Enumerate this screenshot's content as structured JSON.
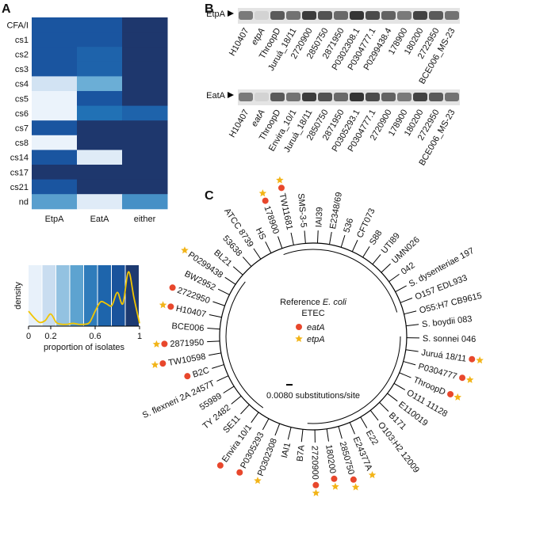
{
  "panels": {
    "a": "A",
    "b": "B",
    "c": "C"
  },
  "heatmap": {
    "rows": [
      "CFA/I",
      "cs1",
      "cs2",
      "cs3",
      "cs4",
      "cs5",
      "cs6",
      "cs7",
      "cs8",
      "cs14",
      "cs17",
      "cs21",
      "nd"
    ],
    "columns": [
      "EtpA",
      "EatA",
      "either"
    ],
    "values": [
      [
        0.8,
        0.8,
        0.95
      ],
      [
        0.8,
        0.8,
        0.95
      ],
      [
        0.8,
        0.7,
        0.95
      ],
      [
        0.8,
        0.7,
        0.95
      ],
      [
        0.15,
        0.4,
        0.95
      ],
      [
        0.05,
        0.8,
        0.95
      ],
      [
        0.05,
        0.6,
        0.7
      ],
      [
        0.8,
        0.95,
        0.95
      ],
      [
        0.05,
        0.95,
        0.95
      ],
      [
        0.8,
        0.1,
        0.95
      ],
      [
        0.95,
        0.95,
        0.95
      ],
      [
        0.8,
        0.95,
        0.95
      ],
      [
        0.45,
        0.1,
        0.5
      ]
    ],
    "colors": [
      "#f7fbff",
      "#c6dbef",
      "#6baed6",
      "#2171b5",
      "#1a55a0",
      "#1f2d5c"
    ]
  },
  "density_chart": {
    "type": "line",
    "y_label": "density",
    "x_label": "proportion of isolates",
    "x": [
      0,
      0.05,
      0.1,
      0.15,
      0.2,
      0.25,
      0.3,
      0.35,
      0.4,
      0.45,
      0.5,
      0.55,
      0.6,
      0.65,
      0.7,
      0.75,
      0.8,
      0.85,
      0.9,
      0.95,
      1
    ],
    "values": [
      1.6,
      0.9,
      0.4,
      0.6,
      1.3,
      0.4,
      0.2,
      0.2,
      0.3,
      0.2,
      0.2,
      0.4,
      1.6,
      2.6,
      2.4,
      2.2,
      3.6,
      2.4,
      5.8,
      3.0,
      0.3
    ],
    "color": "#f2c500",
    "xlim": [
      0,
      1
    ],
    "ylim": [
      0,
      6.5
    ],
    "xticks": [
      0,
      0.2,
      0.6,
      1
    ],
    "bands": 8
  },
  "blots": [
    {
      "protein": "EtpA",
      "lanes": [
        "H10407",
        "etpA",
        "ThroopD",
        "Juruá_18/11",
        "2720900",
        "2850750",
        "2871950",
        "P0302308.1",
        "P0304777.1",
        "P0299438.4",
        "178900",
        "180200",
        "2722950",
        "BCE006_MS-23"
      ],
      "italic_lane": 1
    },
    {
      "protein": "EatA",
      "lanes": [
        "H10407",
        "eatA",
        "ThroopD",
        "Envira_10/1",
        "Juruá_18/11",
        "2850750",
        "2871950",
        "P0305293.1",
        "P0304777.1",
        "2720900",
        "178900",
        "180200",
        "2722950",
        "BCE006_MS-23"
      ],
      "italic_lane": 1
    }
  ],
  "tree": {
    "legend": {
      "reference": "Reference ",
      "species": "E. coli",
      "etec": "ETEC",
      "eatA": "eatA",
      "etpA": "etpA"
    },
    "scale": "0.0080 substitutions/site",
    "etec_color": "#3a8fc8",
    "eatA_color": "#e8472c",
    "etpA_color": "#f2b418",
    "leaves": [
      {
        "label": "E2348/69",
        "etec": false,
        "eatA": false,
        "etpA": false
      },
      {
        "label": "536",
        "etec": false,
        "eatA": false,
        "etpA": false
      },
      {
        "label": "CFT073",
        "etec": false,
        "eatA": false,
        "etpA": false
      },
      {
        "label": "S88",
        "etec": false,
        "eatA": false,
        "etpA": false
      },
      {
        "label": "UTI89",
        "etec": false,
        "eatA": false,
        "etpA": false
      },
      {
        "label": "UMN026",
        "etec": false,
        "eatA": false,
        "etpA": false
      },
      {
        "label": "042",
        "etec": false,
        "eatA": false,
        "etpA": false
      },
      {
        "label": "S. dysenteriae 197",
        "etec": false,
        "eatA": false,
        "etpA": false
      },
      {
        "label": "O157 EDL933",
        "etec": false,
        "eatA": false,
        "etpA": false
      },
      {
        "label": "O55:H7 CB9615",
        "etec": false,
        "eatA": false,
        "etpA": false
      },
      {
        "label": "S. boydii 083",
        "etec": false,
        "eatA": false,
        "etpA": false
      },
      {
        "label": "S. sonnei 046",
        "etec": false,
        "eatA": false,
        "etpA": false
      },
      {
        "label": "Juruá 18/11",
        "etec": true,
        "eatA": true,
        "etpA": true
      },
      {
        "label": "P0304777",
        "etec": true,
        "eatA": true,
        "etpA": true
      },
      {
        "label": "ThroopD",
        "etec": true,
        "eatA": true,
        "etpA": true
      },
      {
        "label": "O111 11128",
        "etec": false,
        "eatA": false,
        "etpA": false
      },
      {
        "label": "E110019",
        "etec": false,
        "eatA": false,
        "etpA": false
      },
      {
        "label": "B171",
        "etec": false,
        "eatA": false,
        "etpA": false
      },
      {
        "label": "O103:H2 12009",
        "etec": false,
        "eatA": false,
        "etpA": false
      },
      {
        "label": "E22",
        "etec": false,
        "eatA": false,
        "etpA": false
      },
      {
        "label": "E24377A",
        "etec": true,
        "eatA": false,
        "etpA": true
      },
      {
        "label": "2850750",
        "etec": true,
        "eatA": true,
        "etpA": true
      },
      {
        "label": "180200",
        "etec": true,
        "eatA": true,
        "etpA": true
      },
      {
        "label": "2720900",
        "etec": true,
        "eatA": true,
        "etpA": true
      },
      {
        "label": "B7A",
        "etec": false,
        "eatA": false,
        "etpA": false
      },
      {
        "label": "IAI1",
        "etec": false,
        "eatA": false,
        "etpA": false
      },
      {
        "label": "P0302308",
        "etec": true,
        "eatA": false,
        "etpA": true
      },
      {
        "label": "P0305293",
        "etec": true,
        "eatA": true,
        "etpA": false
      },
      {
        "label": "Envira 10/1",
        "etec": true,
        "eatA": true,
        "etpA": false
      },
      {
        "label": "SE11",
        "etec": false,
        "eatA": false,
        "etpA": false
      },
      {
        "label": "TY 2482",
        "etec": false,
        "eatA": false,
        "etpA": false
      },
      {
        "label": "55989",
        "etec": false,
        "eatA": false,
        "etpA": false
      },
      {
        "label": "S. flexneri 2A 2457T",
        "etec": false,
        "eatA": false,
        "etpA": false
      },
      {
        "label": "B2C",
        "etec": true,
        "eatA": true,
        "etpA": false
      },
      {
        "label": "TW10598",
        "etec": true,
        "eatA": true,
        "etpA": true
      },
      {
        "label": "2871950",
        "etec": true,
        "eatA": true,
        "etpA": true
      },
      {
        "label": "BCE006",
        "etec": true,
        "eatA": false,
        "etpA": false
      },
      {
        "label": "H10407",
        "etec": true,
        "eatA": true,
        "etpA": true
      },
      {
        "label": "2722950",
        "etec": true,
        "eatA": true,
        "etpA": false
      },
      {
        "label": "BW2952",
        "etec": false,
        "eatA": false,
        "etpA": false
      },
      {
        "label": "P0299438",
        "etec": true,
        "eatA": false,
        "etpA": true
      },
      {
        "label": "BL21",
        "etec": false,
        "eatA": false,
        "etpA": false
      },
      {
        "label": "53638",
        "etec": false,
        "eatA": false,
        "etpA": false
      },
      {
        "label": "ATCC 8739",
        "etec": false,
        "eatA": false,
        "etpA": false
      },
      {
        "label": "HS",
        "etec": false,
        "eatA": false,
        "etpA": false
      },
      {
        "label": "178900",
        "etec": true,
        "eatA": true,
        "etpA": true
      },
      {
        "label": "TW11681",
        "etec": true,
        "eatA": true,
        "etpA": true
      },
      {
        "label": "SMS-3-5",
        "etec": false,
        "eatA": false,
        "etpA": false
      },
      {
        "label": "IAI39",
        "etec": false,
        "eatA": false,
        "etpA": false
      }
    ]
  }
}
